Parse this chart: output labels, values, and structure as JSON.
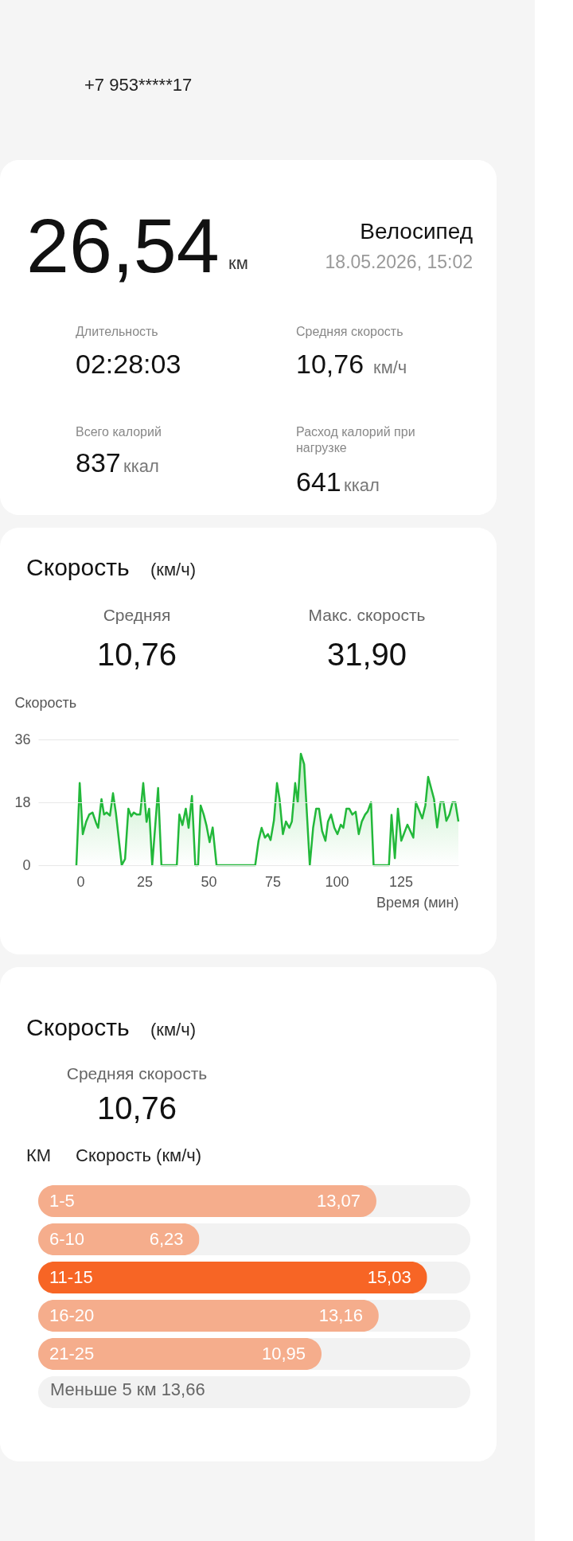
{
  "chart_data": [
    {
      "type": "other",
      "annotations": [
        "+7 953*****17",
        "26,54",
        "км",
        "Велосипед",
        "18.05.2026, 15:02",
        "Длительность",
        "02:28:03",
        "Средняя скорость",
        "10,76",
        "км/ч",
        "Всего калорий",
        "837",
        "ккал",
        "Расход калорий при нагрузке",
        "641",
        "ккал"
      ]
    },
    {
      "type": "area",
      "title": "Скорость",
      "subtitle": "(км/ч)",
      "annotations": [
        "Средняя",
        "10,76",
        "Макс. скорость",
        "31,90"
      ],
      "ylabel": "Скорость",
      "xlabel": "Время (мин)",
      "x": [
        -1.6,
        -0.3,
        0.9,
        2.2,
        3.4,
        4.7,
        6.1,
        6.9,
        8.2,
        9.2,
        10.2,
        11.5,
        12.7,
        13.8,
        16.1,
        17.4,
        18.7,
        19.8,
        20.8,
        22.0,
        23.3,
        24.5,
        25.8,
        26.8,
        28.0,
        30.3,
        31.6,
        37.6,
        38.6,
        39.8,
        41.1,
        42.2,
        43.5,
        44.8,
        45.9,
        46.9,
        48.1,
        49.2,
        50.4,
        51.6,
        53.1,
        68.2,
        69.5,
        70.7,
        72.0,
        73.2,
        74.2,
        75.5,
        76.7,
        77.7,
        79.0,
        80.2,
        81.5,
        82.5,
        83.8,
        84.8,
        86.0,
        87.3,
        89.5,
        90.8,
        92.0,
        93.1,
        94.3,
        95.6,
        96.6,
        97.8,
        99.1,
        100.3,
        101.6,
        102.6,
        103.8,
        104.9,
        106.1,
        107.4,
        108.6,
        109.8,
        111.1,
        112.1,
        113.4,
        114.4,
        120.4,
        121.4,
        122.7,
        123.9,
        125.2,
        127.6,
        129.9,
        130.9,
        133.4,
        134.6,
        135.7,
        138.0,
        139.2,
        140.5,
        141.7,
        142.8,
        144.0,
        145.2,
        146.3,
        147.5
      ],
      "series": [
        {
          "color": "#22b83a",
          "values": [
            0,
            23.5,
            8.9,
            12.4,
            14.5,
            15.1,
            12.1,
            10.7,
            18.9,
            14.5,
            15.1,
            14.2,
            20.6,
            15.1,
            0,
            1.8,
            16.2,
            14.0,
            15.1,
            14.5,
            14.5,
            23.5,
            12.4,
            16.2,
            0,
            22.1,
            0,
            0,
            14.5,
            11.5,
            16.2,
            10.7,
            19.8,
            0,
            0,
            17.1,
            14.5,
            11.3,
            6.6,
            10.8,
            0,
            0,
            7.0,
            10.7,
            7.9,
            8.9,
            7.2,
            12.8,
            23.5,
            18.9,
            8.9,
            12.5,
            10.7,
            12.5,
            23.5,
            18.0,
            31.9,
            28.9,
            0,
            10.7,
            16.2,
            16.2,
            9.8,
            7.0,
            12.5,
            14.5,
            10.7,
            8.9,
            11.6,
            10.7,
            16.2,
            16.2,
            14.5,
            15.3,
            8.9,
            12.5,
            14.5,
            15.4,
            18.0,
            0,
            0,
            14.4,
            2.0,
            16.2,
            7.0,
            11.6,
            7.9,
            18.0,
            13.4,
            17.1,
            25.3,
            18.9,
            10.8,
            18.0,
            18.0,
            12.7,
            14.5,
            18.0,
            18.0,
            12.5
          ]
        }
      ],
      "xlim": [
        -16.5,
        147.5
      ],
      "ylim": [
        0,
        36
      ],
      "xticks": [
        0,
        25,
        50,
        75,
        100,
        125
      ],
      "yticks": [
        0,
        18,
        36
      ],
      "grid": "y"
    },
    {
      "type": "bar",
      "orientation": "horizontal",
      "title": "Скорость",
      "subtitle": "(км/ч)",
      "annotations": [
        "Средняя скорость",
        "10,76",
        "Меньше 5 км 13,66"
      ],
      "ylabel": "КМ",
      "xlabel": "Скорость (км/ч)",
      "categories": [
        "1-5",
        "6-10",
        "11-15",
        "16-20",
        "21-25"
      ],
      "values": [
        13.07,
        6.23,
        15.03,
        13.16,
        10.95
      ],
      "colors": [
        "#f5ad8c",
        "#f5ad8c",
        "#f76525",
        "#f5ad8c",
        "#f5ad8c"
      ],
      "value_labels": [
        "13,07",
        "6,23",
        "15,03",
        "13,16",
        "10,95"
      ],
      "xlim": [
        0,
        16.7
      ]
    }
  ]
}
